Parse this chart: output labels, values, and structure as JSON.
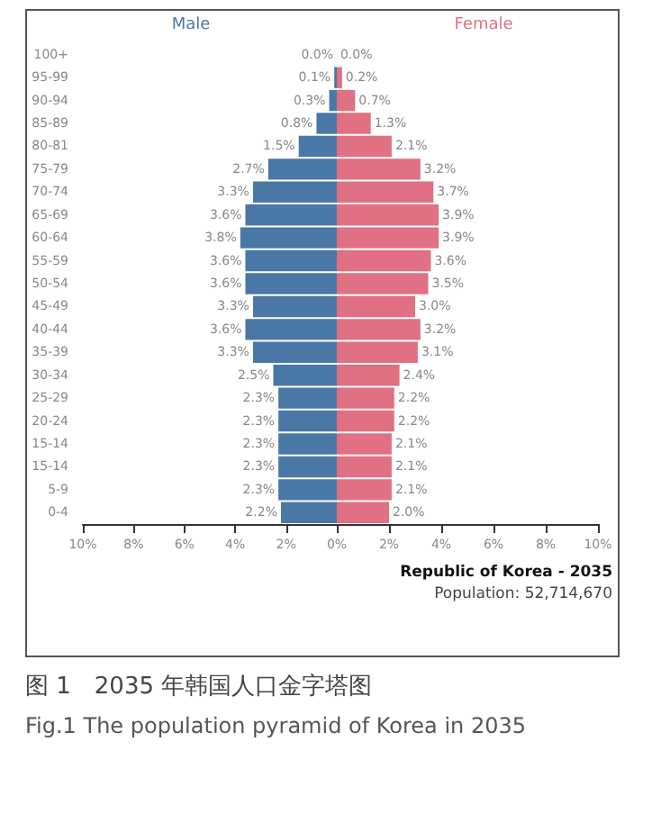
{
  "chart_data": [
    {
      "type": "bar",
      "orientation": "horizontal",
      "title": "图 1　2035 年韩国人口金字塔图",
      "subtitle": "Fig.1 The population pyramid of Korea in 2035",
      "categories": [
        "100+",
        "95-99",
        "90-94",
        "85-89",
        "80-81",
        "75-79",
        "70-74",
        "65-69",
        "60-64",
        "55-59",
        "50-54",
        "45-49",
        "40-44",
        "35-39",
        "30-34",
        "25-29",
        "20-24",
        "15-14",
        "15-14",
        "5-9",
        "0-4"
      ],
      "series": [
        {
          "name": "Male",
          "color": "#4a78a6",
          "values": [
            0.0,
            0.1,
            0.3,
            0.8,
            1.5,
            2.7,
            3.3,
            3.6,
            3.8,
            3.6,
            3.6,
            3.3,
            3.6,
            3.3,
            2.5,
            2.3,
            2.3,
            2.3,
            2.3,
            2.3,
            2.2
          ],
          "value_labels": [
            "0.0%",
            "0.1%",
            "0.3%",
            "0.8%",
            "1.5%",
            "2.7%",
            "3.3%",
            "3.6%",
            "3.8%",
            "3.6%",
            "3.6%",
            "3.3%",
            "3.6%",
            "3.3%",
            "2.5%",
            "2.3%",
            "2.3%",
            "2.3%",
            "2.3%",
            "2.3%",
            "2.2%"
          ]
        }
      ],
      "xlim": [
        10,
        0
      ],
      "xticks": [
        {
          "value": 10,
          "label": "10%"
        },
        {
          "value": 8,
          "label": "8%"
        },
        {
          "value": 6,
          "label": "6%"
        },
        {
          "value": 4,
          "label": "4%"
        },
        {
          "value": 2,
          "label": "2%"
        },
        {
          "value": 0,
          "label": "0%"
        }
      ]
    },
    {
      "type": "bar",
      "orientation": "horizontal",
      "annotations": [
        "Republic of Korea - 2035",
        "Population: 52,714,670"
      ],
      "categories": [
        null,
        null,
        null,
        null,
        null,
        null,
        null,
        null,
        null,
        null,
        null,
        null,
        null,
        null,
        null,
        null,
        null,
        null,
        null,
        null,
        null
      ],
      "series": [
        {
          "name": "Female",
          "color": "#e07082",
          "values": [
            0.0,
            0.2,
            0.7,
            1.3,
            2.1,
            3.2,
            3.7,
            3.9,
            3.9,
            3.6,
            3.5,
            3.0,
            3.2,
            3.1,
            2.4,
            2.2,
            2.2,
            2.1,
            2.1,
            2.1,
            2.0
          ],
          "value_labels": [
            "0.0%",
            "0.2%",
            "0.7%",
            "1.3%",
            "2.1%",
            "3.2%",
            "3.7%",
            "3.9%",
            "3.9%",
            "3.6%",
            "3.5%",
            "3.0%",
            "3.2%",
            "3.1%",
            "2.4%",
            "2.2%",
            "2.2%",
            "2.1%",
            "2.1%",
            "2.1%",
            "2.0%"
          ]
        }
      ],
      "xlim": [
        0,
        10
      ],
      "xticks": [
        {
          "value": 0,
          "label": null
        },
        {
          "value": 2,
          "label": "2%"
        },
        {
          "value": 4,
          "label": "4%"
        },
        {
          "value": 6,
          "label": "6%"
        },
        {
          "value": 8,
          "label": "8%"
        },
        {
          "value": 10,
          "label": "10%"
        }
      ],
      "tick_labels": "x"
    }
  ]
}
